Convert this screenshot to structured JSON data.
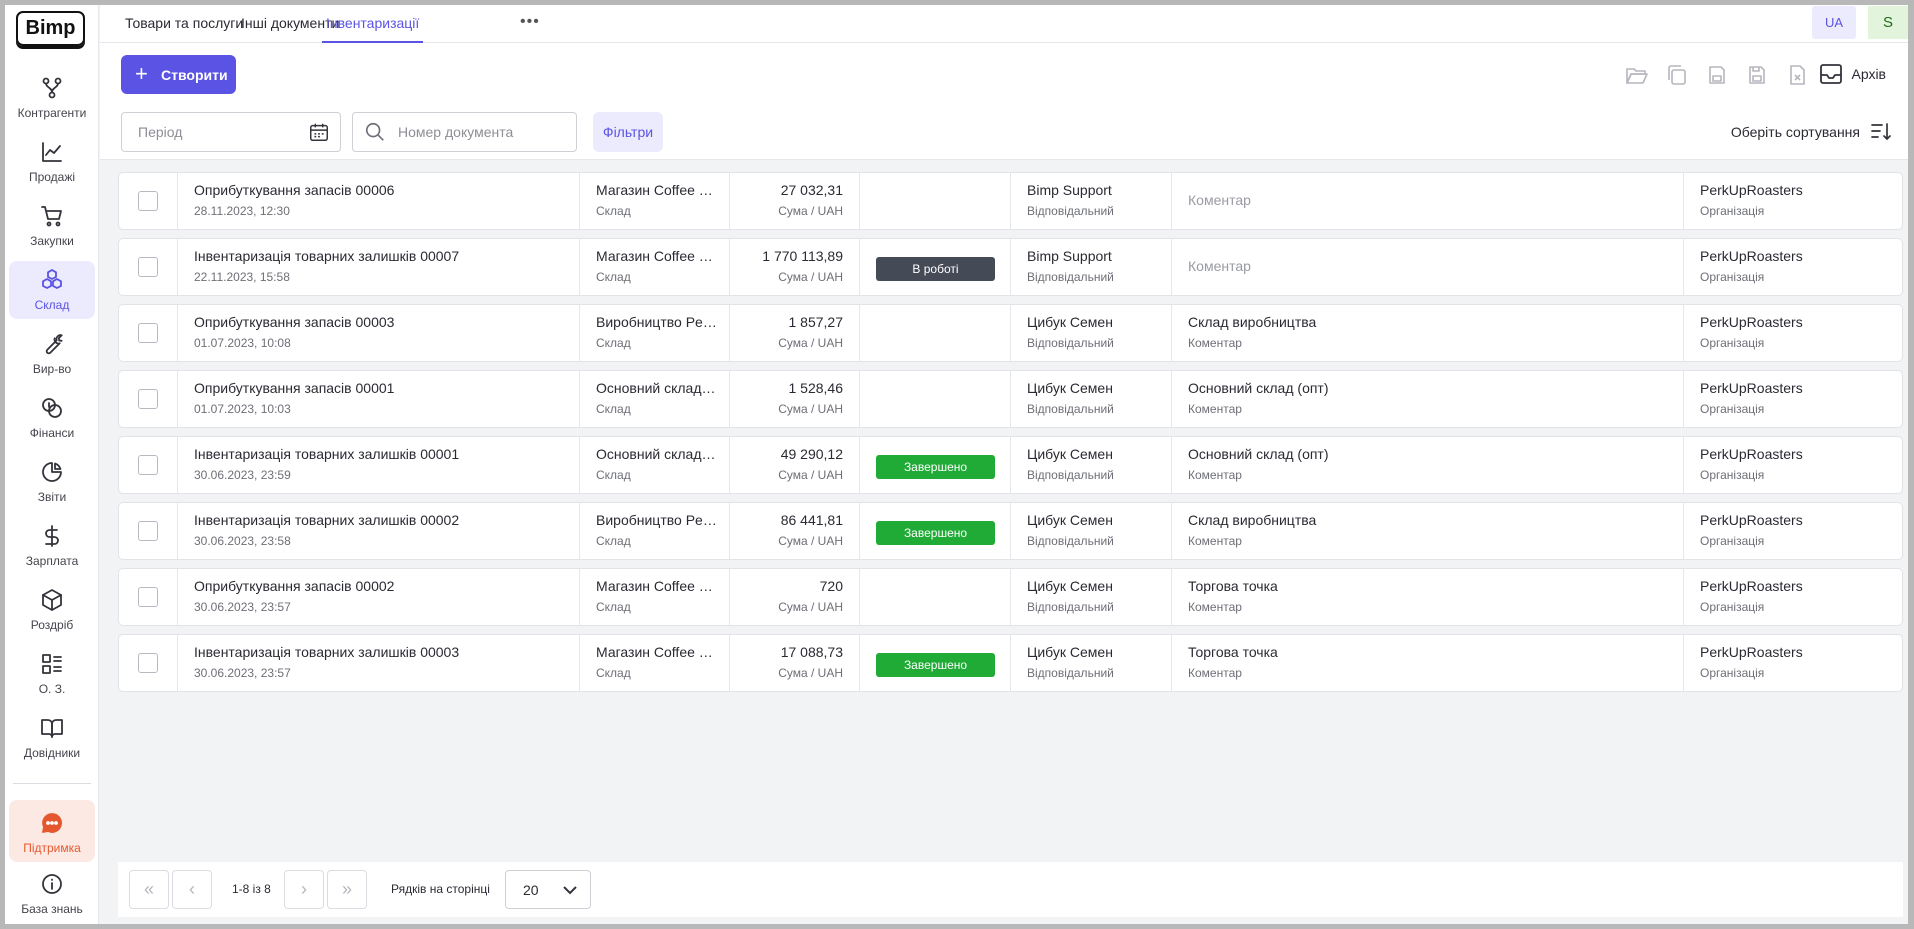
{
  "logo": "Bimp",
  "sidebar": {
    "items": [
      {
        "label": "Контрагенти",
        "icon": "partners-icon"
      },
      {
        "label": "Продажі",
        "icon": "sales-chart-icon"
      },
      {
        "label": "Закупки",
        "icon": "cart-icon"
      },
      {
        "label": "Склад",
        "icon": "warehouse-icon"
      },
      {
        "label": "Вир-во",
        "icon": "wrench-icon"
      },
      {
        "label": "Фінанси",
        "icon": "coins-icon"
      },
      {
        "label": "Звіти",
        "icon": "pie-chart-icon"
      },
      {
        "label": "Зарплата",
        "icon": "dollar-icon"
      },
      {
        "label": "Роздріб",
        "icon": "box-icon"
      },
      {
        "label": "О. З.",
        "icon": "list-icon"
      },
      {
        "label": "Довідники",
        "icon": "book-icon"
      }
    ],
    "support": "Підтримка",
    "knowledge": "База знань"
  },
  "tabs": [
    {
      "label": "Товари та послуги"
    },
    {
      "label": "Інші документи"
    },
    {
      "label": "Інвентаризації"
    }
  ],
  "header": {
    "more": "•••",
    "lang": "UA",
    "user_initial": "S"
  },
  "toolbar": {
    "create": "Створити",
    "archive": "Архів"
  },
  "filters": {
    "period_placeholder": "Період",
    "doc_placeholder": "Номер документа",
    "filters_label": "Фільтри",
    "sort_label": "Оберіть сортування"
  },
  "colors": {
    "accent": "#5b53e3",
    "in_progress": "#444b57",
    "done": "#1fab35"
  },
  "rows": [
    {
      "name": "Оприбуткування запасів 00006",
      "date": "28.11.2023, 12:30",
      "store": "Магазин Coffee Shop",
      "store_sub": "Склад",
      "sum": "27 032,31",
      "sum_sub": "Сума / UAH",
      "status": "",
      "status_type": "",
      "resp": "Bimp Support",
      "resp_sub": "Відповідальний",
      "comment": "Коментар",
      "comment_sub": "",
      "org": "PerkUpRoasters",
      "org_sub": "Організація"
    },
    {
      "name": "Інвентаризація товарних залишків 00007",
      "date": "22.11.2023, 15:58",
      "store": "Магазин Coffee Shop",
      "store_sub": "Склад",
      "sum": "1 770 113,89",
      "sum_sub": "Сума / UAH",
      "status": "В роботі",
      "status_type": "progress",
      "resp": "Bimp Support",
      "resp_sub": "Відповідальний",
      "comment": "Коментар",
      "comment_sub": "",
      "org": "PerkUpRoasters",
      "org_sub": "Організація"
    },
    {
      "name": "Оприбуткування запасів 00003",
      "date": "01.07.2023, 10:08",
      "store": "Виробництво PerkUp",
      "store_sub": "Склад",
      "sum": "1 857,27",
      "sum_sub": "Сума / UAH",
      "status": "",
      "status_type": "",
      "resp": "Цибук Семен",
      "resp_sub": "Відповідальний",
      "comment": "Склад виробництва",
      "comment_sub": "Коментар",
      "org": "PerkUpRoasters",
      "org_sub": "Організація"
    },
    {
      "name": "Оприбуткування запасів 00001",
      "date": "01.07.2023, 10:03",
      "store": "Основний склад (опт)",
      "store_sub": "Склад",
      "sum": "1 528,46",
      "sum_sub": "Сума / UAH",
      "status": "",
      "status_type": "",
      "resp": "Цибук Семен",
      "resp_sub": "Відповідальний",
      "comment": "Основний склад (опт)",
      "comment_sub": "Коментар",
      "org": "PerkUpRoasters",
      "org_sub": "Організація"
    },
    {
      "name": "Інвентаризація товарних залишків 00001",
      "date": "30.06.2023, 23:59",
      "store": "Основний склад (опт)",
      "store_sub": "Склад",
      "sum": "49 290,12",
      "sum_sub": "Сума / UAH",
      "status": "Завершено",
      "status_type": "done",
      "resp": "Цибук Семен",
      "resp_sub": "Відповідальний",
      "comment": "Основний склад (опт)",
      "comment_sub": "Коментар",
      "org": "PerkUpRoasters",
      "org_sub": "Організація"
    },
    {
      "name": "Інвентаризація товарних залишків 00002",
      "date": "30.06.2023, 23:58",
      "store": "Виробництво PerkUp",
      "store_sub": "Склад",
      "sum": "86 441,81",
      "sum_sub": "Сума / UAH",
      "status": "Завершено",
      "status_type": "done",
      "resp": "Цибук Семен",
      "resp_sub": "Відповідальний",
      "comment": "Склад виробництва",
      "comment_sub": "Коментар",
      "org": "PerkUpRoasters",
      "org_sub": "Організація"
    },
    {
      "name": "Оприбуткування запасів 00002",
      "date": "30.06.2023, 23:57",
      "store": "Магазин Coffee Shop",
      "store_sub": "Склад",
      "sum": "720",
      "sum_sub": "Сума / UAH",
      "status": "",
      "status_type": "",
      "resp": "Цибук Семен",
      "resp_sub": "Відповідальний",
      "comment": "Торгова точка",
      "comment_sub": "Коментар",
      "org": "PerkUpRoasters",
      "org_sub": "Організація"
    },
    {
      "name": "Інвентаризація товарних залишків 00003",
      "date": "30.06.2023, 23:57",
      "store": "Магазин Coffee Shop",
      "store_sub": "Склад",
      "sum": "17 088,73",
      "sum_sub": "Сума / UAH",
      "status": "Завершено",
      "status_type": "done",
      "resp": "Цибук Семен",
      "resp_sub": "Відповідальний",
      "comment": "Торгова точка",
      "comment_sub": "Коментар",
      "org": "PerkUpRoasters",
      "org_sub": "Організація"
    }
  ],
  "pagination": {
    "info": "1-8 із 8",
    "rows_label": "Рядків на сторінці",
    "rows_value": "20"
  }
}
